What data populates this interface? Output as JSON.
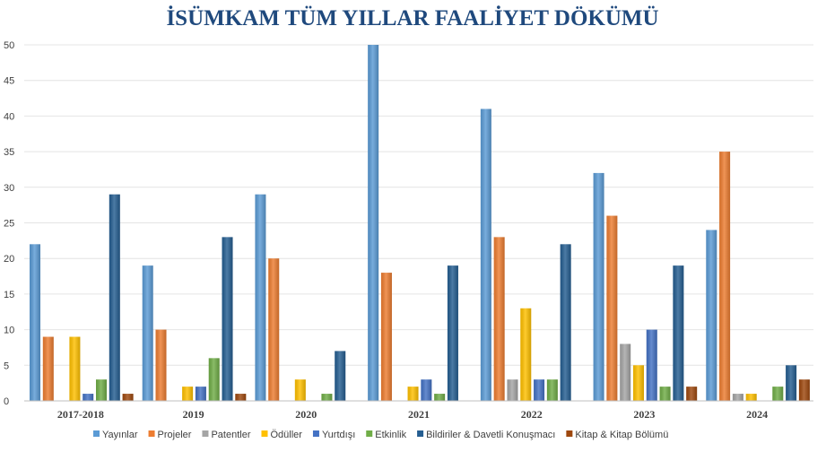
{
  "chart_data": {
    "type": "bar",
    "title": "İSÜMKAM TÜM YILLAR FAALİYET DÖKÜMÜ",
    "xlabel": "",
    "ylabel": "",
    "ylim": [
      0,
      50
    ],
    "yticks": [
      0,
      5,
      10,
      15,
      20,
      25,
      30,
      35,
      40,
      45,
      50
    ],
    "grid": true,
    "legend_position": "bottom",
    "categories": [
      "2017-2018",
      "2019",
      "2020",
      "2021",
      "2022",
      "2023",
      "2024"
    ],
    "series": [
      {
        "name": "Yayınlar",
        "color": "#5b9bd5",
        "values": [
          22,
          19,
          29,
          50,
          41,
          32,
          24
        ]
      },
      {
        "name": "Projeler",
        "color": "#ed7d31",
        "values": [
          9,
          10,
          20,
          18,
          23,
          26,
          35
        ]
      },
      {
        "name": "Patentler",
        "color": "#a5a5a5",
        "values": [
          0,
          0,
          0,
          0,
          3,
          8,
          1
        ]
      },
      {
        "name": "Ödüller",
        "color": "#ffc000",
        "values": [
          9,
          2,
          3,
          2,
          13,
          5,
          1
        ]
      },
      {
        "name": "Yurtdışı",
        "color": "#4472c4",
        "values": [
          1,
          2,
          0,
          3,
          3,
          10,
          0
        ]
      },
      {
        "name": "Etkinlik",
        "color": "#70ad47",
        "values": [
          3,
          6,
          1,
          1,
          3,
          2,
          2
        ]
      },
      {
        "name": "Bildiriler & Davetli Konuşmacı",
        "color": "#255e91",
        "values": [
          29,
          23,
          7,
          19,
          22,
          19,
          5
        ]
      },
      {
        "name": "Kitap & Kitap Bölümü",
        "color": "#9e480e",
        "values": [
          1,
          1,
          0,
          0,
          0,
          2,
          3
        ]
      }
    ]
  }
}
